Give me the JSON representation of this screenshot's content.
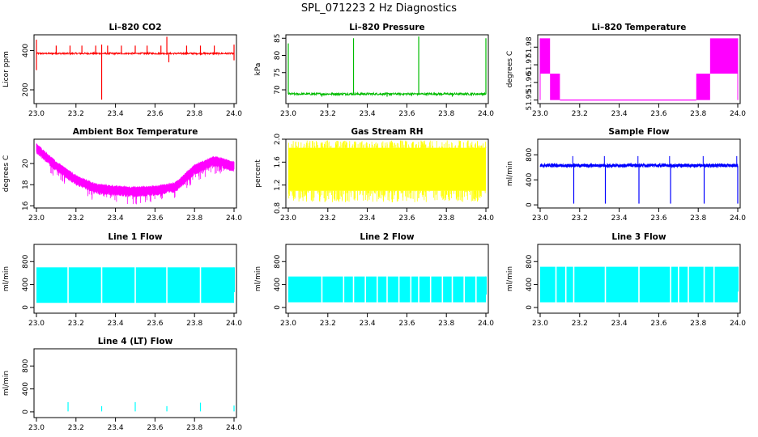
{
  "figure_title": "SPL_071223  2 Hz Diagnostics",
  "chart_data": [
    {
      "type": "line",
      "title": "Li–820 CO2",
      "ylabel": "Licor ppm",
      "xlabel": "",
      "color": "#ff0000",
      "xlim": [
        23.0,
        24.0
      ],
      "ylim": [
        130,
        480
      ],
      "xticks": [
        23.0,
        23.2,
        23.4,
        23.6,
        23.8,
        24.0
      ],
      "xtick_labels": [
        "23.0",
        "23.2",
        "23.4",
        "23.6",
        "23.8",
        "24.0"
      ],
      "yticks": [
        200,
        400
      ],
      "ytick_labels": [
        "200",
        "400"
      ],
      "series": [
        {
          "name": "CO2",
          "baseline": 385,
          "noise": 4,
          "spikes": [
            [
              23.0,
              455
            ],
            [
              23.0,
              300
            ],
            [
              23.1,
              425
            ],
            [
              23.17,
              425
            ],
            [
              23.23,
              425
            ],
            [
              23.3,
              425
            ],
            [
              23.33,
              150
            ],
            [
              23.33,
              430
            ],
            [
              23.36,
              425
            ],
            [
              23.43,
              425
            ],
            [
              23.5,
              425
            ],
            [
              23.56,
              425
            ],
            [
              23.63,
              425
            ],
            [
              23.66,
              470
            ],
            [
              23.67,
              340
            ],
            [
              23.76,
              425
            ],
            [
              23.83,
              425
            ],
            [
              23.9,
              425
            ],
            [
              24.0,
              430
            ],
            [
              24.0,
              350
            ]
          ]
        }
      ]
    },
    {
      "type": "line",
      "title": "Li–820 Pressure",
      "ylabel": "kPa",
      "xlabel": "",
      "color": "#00bb00",
      "xlim": [
        23.0,
        24.0
      ],
      "ylim": [
        66,
        86
      ],
      "xticks": [
        23.0,
        23.2,
        23.4,
        23.6,
        23.8,
        24.0
      ],
      "xtick_labels": [
        "23.0",
        "23.2",
        "23.4",
        "23.6",
        "23.8",
        "24.0"
      ],
      "yticks": [
        70,
        75,
        80,
        85
      ],
      "ytick_labels": [
        "70",
        "75",
        "80",
        "85"
      ],
      "series": [
        {
          "name": "Pressure",
          "baseline": 68.8,
          "noise": 0.3,
          "spikes": [
            [
              23.0,
              83.5
            ],
            [
              23.33,
              85.0
            ],
            [
              23.66,
              85.5
            ],
            [
              24.0,
              85.0
            ],
            [
              23.17,
              68.0
            ],
            [
              23.5,
              68.0
            ],
            [
              23.83,
              68.0
            ]
          ]
        }
      ]
    },
    {
      "type": "line",
      "title": "Li–820 Temperature",
      "ylabel": "degrees C",
      "xlabel": "",
      "color": "#ff00ff",
      "xlim": [
        23.0,
        24.0
      ],
      "ylim": [
        51.948,
        51.987
      ],
      "xticks": [
        23.0,
        23.2,
        23.4,
        23.6,
        23.8,
        24.0
      ],
      "xtick_labels": [
        "23.0",
        "23.2",
        "23.4",
        "23.6",
        "23.8",
        "24.0"
      ],
      "yticks": [
        51.95,
        51.96,
        51.97,
        51.98
      ],
      "ytick_labels": [
        "51.95",
        "51.96",
        "51.97",
        "51.98"
      ],
      "series": [
        {
          "name": "Temperature",
          "levels": [
            51.95,
            51.965,
            51.985
          ],
          "segments": [
            [
              23.0,
              23.05,
              51.985,
              51.965
            ],
            [
              23.05,
              23.1,
              51.965,
              51.95
            ],
            [
              23.1,
              23.79,
              51.95,
              51.95
            ],
            [
              23.79,
              23.86,
              51.965,
              51.95
            ],
            [
              23.86,
              24.0,
              51.985,
              51.965
            ]
          ]
        }
      ]
    },
    {
      "type": "line",
      "title": "Ambient Box Temperature",
      "ylabel": "degrees C",
      "xlabel": "",
      "color": "#ff00ff",
      "xlim": [
        23.0,
        24.0
      ],
      "ylim": [
        15.8,
        22.3
      ],
      "xticks": [
        23.0,
        23.2,
        23.4,
        23.6,
        23.8,
        24.0
      ],
      "xtick_labels": [
        "23.0",
        "23.2",
        "23.4",
        "23.6",
        "23.8",
        "24.0"
      ],
      "yticks": [
        16,
        18,
        20
      ],
      "ytick_labels": [
        "16",
        "18",
        "20"
      ],
      "series": [
        {
          "name": "Box temperature",
          "trend_x": [
            23.0,
            23.1,
            23.2,
            23.3,
            23.4,
            23.5,
            23.6,
            23.7,
            23.8,
            23.9,
            24.0
          ],
          "trend_y": [
            21.5,
            19.8,
            18.5,
            17.7,
            17.5,
            17.4,
            17.5,
            17.8,
            19.5,
            20.3,
            19.8
          ],
          "band": 0.8
        }
      ]
    },
    {
      "type": "line",
      "title": "Gas Stream RH",
      "ylabel": "percent",
      "xlabel": "",
      "color": "#ffff00",
      "xlim": [
        23.0,
        24.0
      ],
      "ylim": [
        0.8,
        2.0
      ],
      "xticks": [
        23.0,
        23.2,
        23.4,
        23.6,
        23.8,
        24.0
      ],
      "xtick_labels": [
        "23.0",
        "23.2",
        "23.4",
        "23.6",
        "23.8",
        "24.0"
      ],
      "yticks": [
        0.8,
        1.2,
        1.6,
        2.0
      ],
      "ytick_labels": [
        "0.8",
        "1.2",
        "1.6",
        "2.0"
      ],
      "series": [
        {
          "name": "RH",
          "low": 1.1,
          "high": 1.85,
          "outer_low": 0.9,
          "outer_high": 1.98
        }
      ]
    },
    {
      "type": "line",
      "title": "Sample Flow",
      "ylabel": "ml/min",
      "xlabel": "",
      "color": "#0000ff",
      "xlim": [
        23.0,
        24.0
      ],
      "ylim": [
        -50,
        1050
      ],
      "xticks": [
        23.0,
        23.2,
        23.4,
        23.6,
        23.8,
        24.0
      ],
      "xtick_labels": [
        "23.0",
        "23.2",
        "23.4",
        "23.6",
        "23.8",
        "24.0"
      ],
      "yticks": [
        0,
        400,
        800
      ],
      "ytick_labels": [
        "0",
        "400",
        "800"
      ],
      "series": [
        {
          "name": "Sample",
          "baseline": 630,
          "noise": 25,
          "dips": [
            23.17,
            23.33,
            23.5,
            23.66,
            23.83,
            24.0
          ],
          "dip_value": 20,
          "spike_value": 780
        }
      ]
    },
    {
      "type": "line",
      "title": "Line 1 Flow",
      "ylabel": "ml/min",
      "xlabel": "",
      "color": "#00ffff",
      "xlim": [
        23.0,
        24.0
      ],
      "ylim": [
        -100,
        1100
      ],
      "xticks": [
        23.0,
        23.2,
        23.4,
        23.6,
        23.8,
        24.0
      ],
      "xtick_labels": [
        "23.0",
        "23.2",
        "23.4",
        "23.6",
        "23.8",
        "24.0"
      ],
      "yticks": [
        0,
        400,
        800
      ],
      "ytick_labels": [
        "0",
        "400",
        "800"
      ],
      "series": [
        {
          "name": "Line 1",
          "low": 80,
          "high": 700,
          "gaps": [
            23.16,
            23.33,
            23.5,
            23.66,
            23.83
          ]
        }
      ]
    },
    {
      "type": "line",
      "title": "Line 2 Flow",
      "ylabel": "ml/min",
      "xlabel": "",
      "color": "#00ffff",
      "xlim": [
        23.0,
        24.0
      ],
      "ylim": [
        -100,
        1100
      ],
      "xticks": [
        23.0,
        23.2,
        23.4,
        23.6,
        23.8,
        24.0
      ],
      "xtick_labels": [
        "23.0",
        "23.2",
        "23.4",
        "23.6",
        "23.8",
        "24.0"
      ],
      "yticks": [
        0,
        400,
        800
      ],
      "ytick_labels": [
        "0",
        "400",
        "800"
      ],
      "series": [
        {
          "name": "Line 2",
          "low": 90,
          "high": 540,
          "gaps": [
            23.17,
            23.28,
            23.33,
            23.39,
            23.45,
            23.5,
            23.56,
            23.62,
            23.66,
            23.72,
            23.78,
            23.83,
            23.89,
            23.95
          ]
        }
      ]
    },
    {
      "type": "line",
      "title": "Line 3 Flow",
      "ylabel": "ml/min",
      "xlabel": "",
      "color": "#00ffff",
      "xlim": [
        23.0,
        24.0
      ],
      "ylim": [
        -100,
        1100
      ],
      "xticks": [
        23.0,
        23.2,
        23.4,
        23.6,
        23.8,
        24.0
      ],
      "xtick_labels": [
        "23.0",
        "23.2",
        "23.4",
        "23.6",
        "23.8",
        "24.0"
      ],
      "yticks": [
        0,
        400,
        800
      ],
      "ytick_labels": [
        "0",
        "400",
        "800"
      ],
      "series": [
        {
          "name": "Line 3",
          "low": 90,
          "high": 710,
          "gaps": [
            23.08,
            23.13,
            23.17,
            23.33,
            23.5,
            23.66,
            23.7,
            23.75,
            23.83,
            23.88
          ]
        }
      ]
    },
    {
      "type": "line",
      "title": "Line 4 (LT) Flow",
      "ylabel": "ml/min",
      "xlabel": "",
      "color": "#00ffff",
      "xlim": [
        23.0,
        24.0
      ],
      "ylim": [
        -100,
        1100
      ],
      "xticks": [
        23.0,
        23.2,
        23.4,
        23.6,
        23.8,
        24.0
      ],
      "xtick_labels": [
        "23.0",
        "23.2",
        "23.4",
        "23.6",
        "23.8",
        "24.0"
      ],
      "yticks": [
        0,
        400,
        800
      ],
      "ytick_labels": [
        "0",
        "400",
        "800"
      ],
      "series": [
        {
          "name": "Line 4",
          "baseline": 8,
          "spikes": [
            [
              23.16,
              170
            ],
            [
              23.33,
              100
            ],
            [
              23.5,
              170
            ],
            [
              23.66,
              100
            ],
            [
              23.83,
              160
            ],
            [
              24.0,
              110
            ]
          ]
        }
      ]
    }
  ]
}
